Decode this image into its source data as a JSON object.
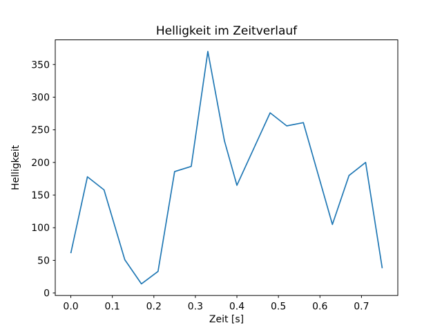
{
  "chart_data": {
    "type": "line",
    "title": "Helligkeit im Zeitverlauf",
    "xlabel": "Zeit [s]",
    "ylabel": "Helligkeit",
    "x": [
      0.0,
      0.04,
      0.08,
      0.13,
      0.17,
      0.21,
      0.25,
      0.29,
      0.33,
      0.37,
      0.4,
      0.48,
      0.52,
      0.56,
      0.63,
      0.67,
      0.71,
      0.75
    ],
    "y": [
      61,
      178,
      158,
      51,
      14,
      33,
      186,
      194,
      370,
      233,
      165,
      276,
      256,
      261,
      105,
      180,
      200,
      38
    ],
    "xlim": [
      -0.0375,
      0.7875
    ],
    "ylim": [
      -3.8,
      387.8
    ],
    "xticks": [
      0.0,
      0.1,
      0.2,
      0.3,
      0.4,
      0.5,
      0.6,
      0.7
    ],
    "xtick_labels": [
      "0.0",
      "0.1",
      "0.2",
      "0.3",
      "0.4",
      "0.5",
      "0.6",
      "0.7"
    ],
    "yticks": [
      0,
      50,
      100,
      150,
      200,
      250,
      300,
      350
    ],
    "ytick_labels": [
      "0",
      "50",
      "100",
      "150",
      "200",
      "250",
      "300",
      "350"
    ],
    "line_color": "#1f77b4",
    "line_width": 1.7,
    "spine_color": "#000000",
    "background_color": "#ffffff",
    "grid": false,
    "legend": "none",
    "markers": "none"
  }
}
